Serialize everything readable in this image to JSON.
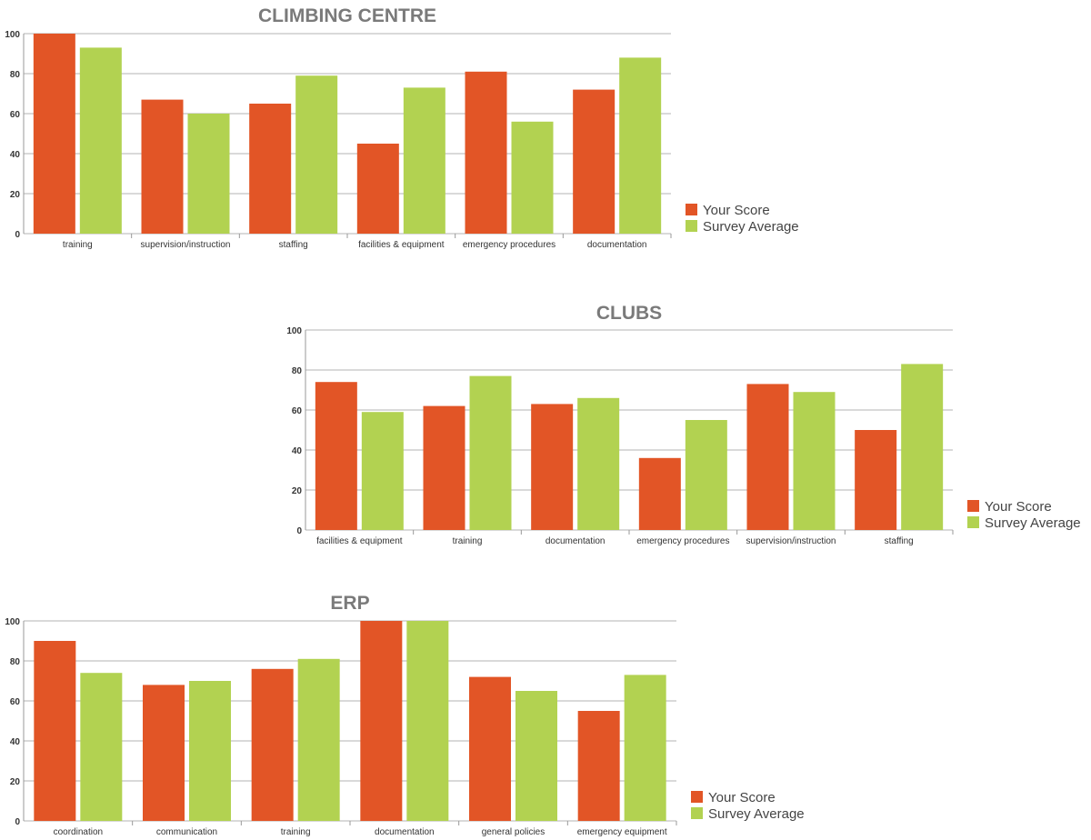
{
  "chart_data": [
    {
      "type": "bar",
      "title": "CLIMBING CENTRE",
      "categories": [
        "training",
        "supervision/instruction",
        "staffing",
        "facilities & equipment",
        "emergency procedures",
        "documentation"
      ],
      "series": [
        {
          "name": "Your Score",
          "values": [
            100,
            67,
            65,
            45,
            81,
            72
          ]
        },
        {
          "name": "Survey Average",
          "values": [
            93,
            60,
            79,
            73,
            56,
            88
          ]
        }
      ],
      "ylim": [
        0,
        100
      ],
      "yticks": [
        0,
        20,
        40,
        60,
        80,
        100
      ],
      "grid": true,
      "legend": "right"
    },
    {
      "type": "bar",
      "title": "CLUBS",
      "categories": [
        "facilities & equipment",
        "training",
        "documentation",
        "emergency procedures",
        "supervision/instruction",
        "staffing"
      ],
      "series": [
        {
          "name": "Your Score",
          "values": [
            74,
            62,
            63,
            36,
            73,
            50
          ]
        },
        {
          "name": "Survey Average",
          "values": [
            59,
            77,
            66,
            55,
            69,
            83
          ]
        }
      ],
      "ylim": [
        0,
        100
      ],
      "yticks": [
        0,
        20,
        40,
        60,
        80,
        100
      ],
      "grid": true,
      "legend": "right"
    },
    {
      "type": "bar",
      "title": "ERP",
      "categories": [
        "coordination",
        "communication",
        "training",
        "documentation",
        "general policies",
        "emergency equipment"
      ],
      "series": [
        {
          "name": "Your Score",
          "values": [
            90,
            68,
            76,
            100,
            72,
            55
          ]
        },
        {
          "name": "Survey Average",
          "values": [
            74,
            70,
            81,
            100,
            65,
            73
          ]
        }
      ],
      "ylim": [
        0,
        100
      ],
      "yticks": [
        0,
        20,
        40,
        60,
        80,
        100
      ],
      "grid": true,
      "legend": "right"
    }
  ],
  "colors": {
    "your_score": "#e25526",
    "survey_average": "#b2d251",
    "title": "#7a7a7a"
  }
}
